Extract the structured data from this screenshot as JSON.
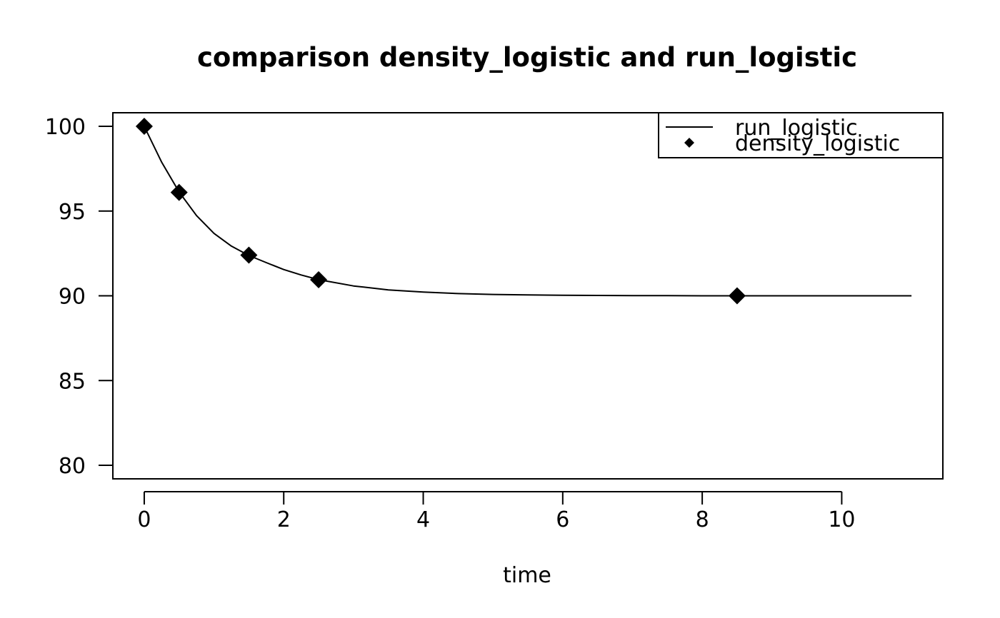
{
  "chart_data": {
    "type": "line",
    "title": "comparison density_logistic and run_logistic",
    "xlabel": "time",
    "ylabel": "",
    "xlim": [
      -0.45,
      11.45
    ],
    "ylim": [
      79.2,
      100.8
    ],
    "x_ticks": [
      0,
      2,
      4,
      6,
      8,
      10
    ],
    "y_ticks": [
      80,
      85,
      90,
      95,
      100
    ],
    "grid": false,
    "legend_position": "top-right",
    "series": [
      {
        "name": "run_logistic",
        "kind": "line",
        "color": "#000000",
        "x": [
          0,
          0.25,
          0.5,
          0.75,
          1,
          1.25,
          1.5,
          1.75,
          2,
          2.25,
          2.5,
          3,
          3.5,
          4,
          4.5,
          5,
          5.5,
          6,
          6.5,
          7,
          7.5,
          8,
          8.5,
          9,
          9.5,
          10,
          10.5,
          11
        ],
        "y": [
          100,
          97.88,
          96.12,
          94.73,
          93.68,
          92.93,
          92.38,
          91.96,
          91.55,
          91.23,
          90.95,
          90.58,
          90.35,
          90.22,
          90.13,
          90.08,
          90.05,
          90.03,
          90.02,
          90.01,
          90.01,
          90.0,
          90.0,
          90.0,
          90.0,
          90.0,
          90.0,
          90.0
        ]
      },
      {
        "name": "density_logistic",
        "kind": "points",
        "marker": "diamond",
        "color": "#000000",
        "x": [
          0,
          0.5,
          1.5,
          2.5,
          8.5
        ],
        "y": [
          100,
          96.1,
          92.4,
          90.95,
          90.0
        ]
      }
    ]
  }
}
